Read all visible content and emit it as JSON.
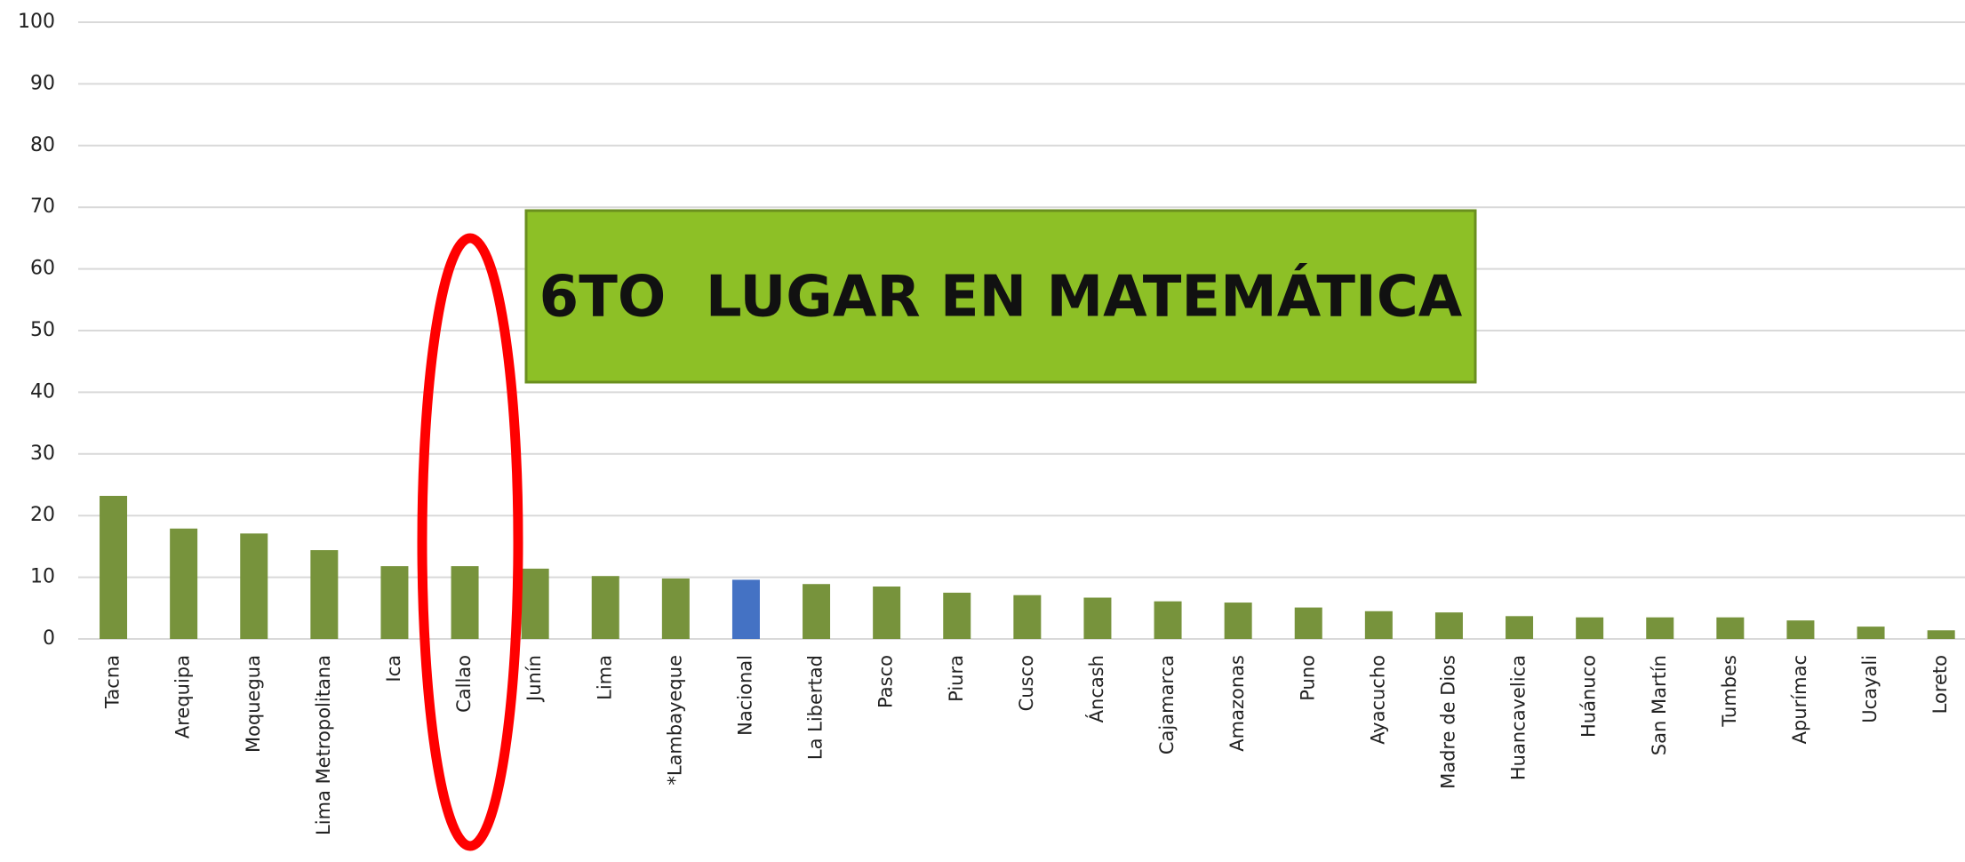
{
  "chart_data": {
    "type": "bar",
    "annotation": "6TO  LUGAR EN MATEMÁTICA",
    "categories": [
      "Tacna",
      "Arequipa",
      "Moquegua",
      "Lima Metropolitana",
      "Ica",
      "Callao",
      "Junín",
      "Lima",
      "*Lambayeque",
      "Nacional",
      "La Libertad",
      "Pasco",
      "Piura",
      "Cusco",
      "Áncash",
      "Cajamarca",
      "Amazonas",
      "Puno",
      "Ayacucho",
      "Madre de Dios",
      "Huancavelica",
      "Huánuco",
      "San Martín",
      "Tumbes",
      "Apurímac",
      "Ucayali",
      "Loreto"
    ],
    "values": [
      23.2,
      17.9,
      17.1,
      14.4,
      11.8,
      11.8,
      11.4,
      10.2,
      9.8,
      9.6,
      8.9,
      8.5,
      7.5,
      7.1,
      6.7,
      6.1,
      5.9,
      5.1,
      4.5,
      4.3,
      3.7,
      3.5,
      3.5,
      3.5,
      3.0,
      2.0,
      1.4
    ],
    "colors": [
      "#77933c",
      "#77933c",
      "#77933c",
      "#77933c",
      "#77933c",
      "#77933c",
      "#77933c",
      "#77933c",
      "#77933c",
      "#4472c4",
      "#77933c",
      "#77933c",
      "#77933c",
      "#77933c",
      "#77933c",
      "#77933c",
      "#77933c",
      "#77933c",
      "#77933c",
      "#77933c",
      "#77933c",
      "#77933c",
      "#77933c",
      "#77933c",
      "#77933c",
      "#77933c",
      "#77933c"
    ],
    "ylim": [
      0,
      100
    ],
    "yticks": [
      0,
      10,
      20,
      30,
      40,
      50,
      60,
      70,
      80,
      90,
      100
    ],
    "grid": true
  }
}
